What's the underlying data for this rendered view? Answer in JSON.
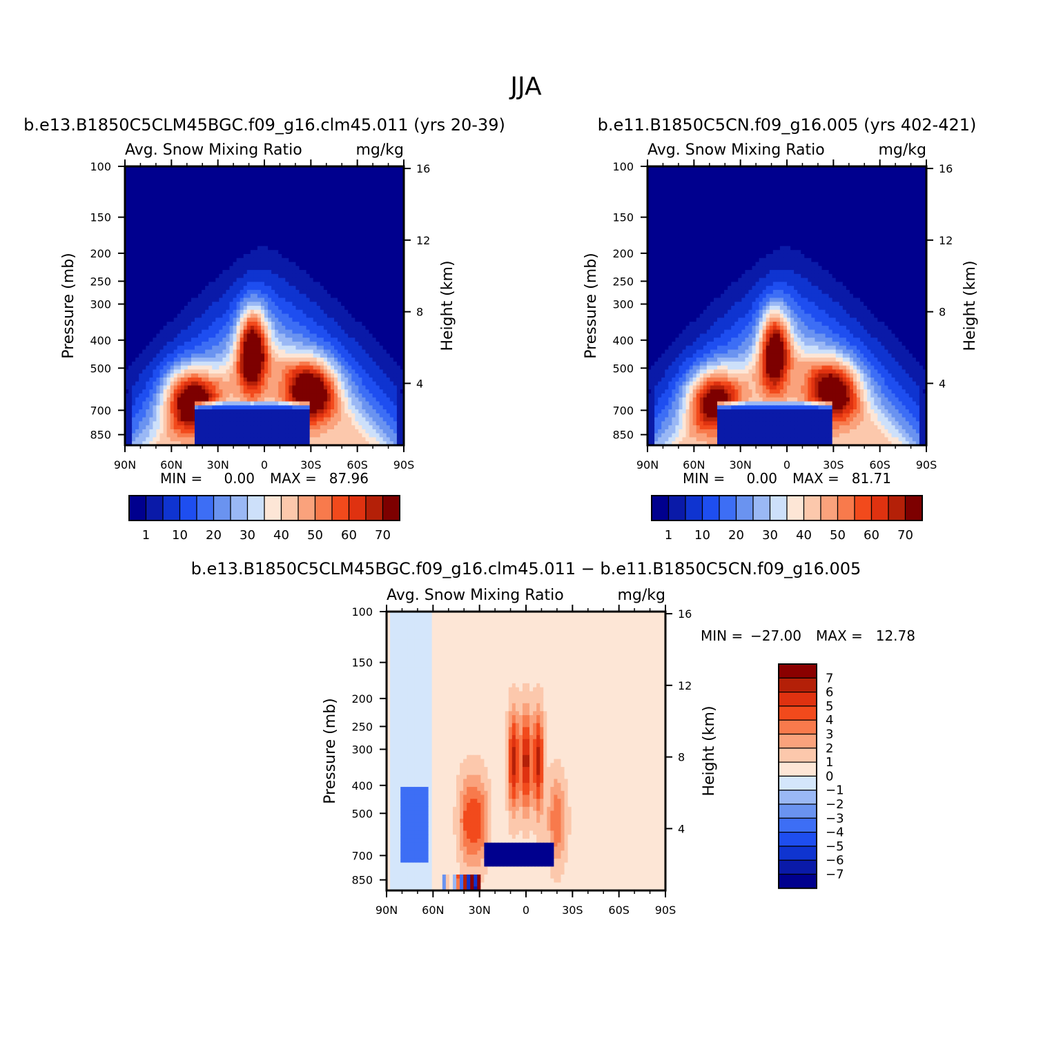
{
  "page_title": "JJA",
  "colors": {
    "full_fill": [
      "#00008e",
      "#0a1aa8",
      "#0f34d0",
      "#1e4ef0",
      "#3d6ef5",
      "#6a93f0",
      "#9ab8f5",
      "#cde0fa",
      "#fde6d6",
      "#fcc8ac",
      "#faa27c",
      "#f87a4c",
      "#f24a1c",
      "#df3210",
      "#b42008",
      "#7d0000"
    ],
    "diff_fill": [
      "#00008e",
      "#0a1aa8",
      "#0f34d0",
      "#1e4ef0",
      "#3d6ef5",
      "#6a93f0",
      "#9ab8f5",
      "#d4e6fb",
      "#fde6d6",
      "#fcc8ac",
      "#faa27c",
      "#f87a4c",
      "#f24a1c",
      "#df3210",
      "#b42008",
      "#8a0000"
    ]
  },
  "chart_data": [
    {
      "id": "left",
      "type": "heatmap",
      "title": "b.e13.B1850C5CLM45BGC.f09_g16.clm45.011 (yrs 20-39)",
      "subtitle_left": "Avg. Snow Mixing Ratio",
      "subtitle_right": "mg/kg",
      "ylabel": "Pressure (mb)",
      "ylabel_right": "Height (km)",
      "x_ticklabels": [
        "90N",
        "60N",
        "30N",
        "0",
        "30S",
        "60S",
        "90S"
      ],
      "x_range": [
        90,
        -90
      ],
      "y_ticks": [
        100,
        150,
        200,
        250,
        300,
        400,
        500,
        700,
        850
      ],
      "y_range": [
        100,
        925
      ],
      "height_ticks": [
        16,
        12,
        8,
        4
      ],
      "stats": {
        "min_label": "MIN =",
        "min": "0.00",
        "max_label": "MAX =",
        "max": "87.96"
      },
      "features": [
        {
          "lat": 48,
          "p": 640,
          "v": 82
        },
        {
          "lat": 8,
          "p": 430,
          "v": 88
        },
        {
          "lat": -30,
          "p": 600,
          "v": 80
        }
      ],
      "colorbar_labels": [
        "1",
        "10",
        "20",
        "30",
        "40",
        "50",
        "60",
        "70"
      ]
    },
    {
      "id": "right",
      "type": "heatmap",
      "title": "b.e11.B1850C5CN.f09_g16.005 (yrs 402-421)",
      "subtitle_left": "Avg. Snow Mixing Ratio",
      "subtitle_right": "mg/kg",
      "ylabel": "Pressure (mb)",
      "ylabel_right": "Height (km)",
      "x_ticklabels": [
        "90N",
        "60N",
        "30N",
        "0",
        "30S",
        "60S",
        "90S"
      ],
      "x_range": [
        90,
        -90
      ],
      "y_ticks": [
        100,
        150,
        200,
        250,
        300,
        400,
        500,
        700,
        850
      ],
      "y_range": [
        100,
        925
      ],
      "height_ticks": [
        16,
        12,
        8,
        4
      ],
      "stats": {
        "min_label": "MIN =",
        "min": "0.00",
        "max_label": "MAX =",
        "max": "81.71"
      },
      "features": [
        {
          "lat": 48,
          "p": 640,
          "v": 76
        },
        {
          "lat": 8,
          "p": 430,
          "v": 82
        },
        {
          "lat": -30,
          "p": 600,
          "v": 76
        }
      ],
      "colorbar_labels": [
        "1",
        "10",
        "20",
        "30",
        "40",
        "50",
        "60",
        "70"
      ]
    },
    {
      "id": "diff",
      "type": "heatmap",
      "title": "b.e13.B1850C5CLM45BGC.f09_g16.clm45.011 − b.e11.B1850C5CN.f09_g16.005",
      "subtitle_left": "Avg. Snow Mixing Ratio",
      "subtitle_right": "mg/kg",
      "ylabel": "Pressure (mb)",
      "ylabel_right": "Height (km)",
      "x_ticklabels": [
        "90N",
        "60N",
        "30N",
        "0",
        "30S",
        "60S",
        "90S"
      ],
      "x_range": [
        90,
        -90
      ],
      "y_ticks": [
        100,
        150,
        200,
        250,
        300,
        400,
        500,
        700,
        850
      ],
      "y_range": [
        100,
        925
      ],
      "height_ticks": [
        16,
        12,
        8,
        4
      ],
      "stats": {
        "min_label": "MIN =",
        "min": "−27.00",
        "max_label": "MAX =",
        "max": "12.78"
      },
      "colorbar_labels": [
        "7",
        "6",
        "5",
        "4",
        "3",
        "2",
        "1",
        "0",
        "−1",
        "−2",
        "−3",
        "−4",
        "−5",
        "−6",
        "−7"
      ]
    }
  ]
}
